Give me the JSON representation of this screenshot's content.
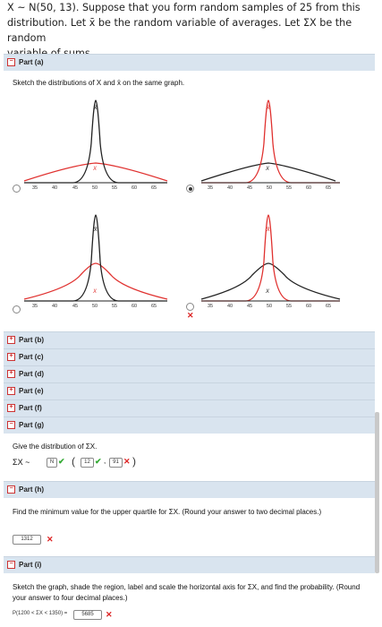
{
  "problem": {
    "line1_pre": "X ~ N(50, 13). Suppose that you form random samples of 25 from this",
    "line2": "distribution. Let x̄ be the random variable of averages. Let ΣX be the random",
    "line3": "variable of sums."
  },
  "parts": {
    "a": "Part (a)",
    "b": "Part (b)",
    "c": "Part (c)",
    "d": "Part (d)",
    "e": "Part (e)",
    "f": "Part (f)",
    "g": "Part (g)",
    "h": "Part (h)",
    "i": "Part (i)"
  },
  "part_a": {
    "instruction": "Sketch the distributions of X and x̄ on the same graph.",
    "x_ticks": [
      "35",
      "40",
      "45",
      "50",
      "55",
      "60",
      "65"
    ],
    "curve_label_mean": "x̄",
    "curve_label_x": "X"
  },
  "part_g": {
    "instruction": "Give the distribution of ΣX.",
    "prefix": "ΣX ~",
    "dist_value": "N",
    "param1": "12",
    "param2": "91",
    "paren_open": "(",
    "paren_close": ")",
    "comma": ","
  },
  "part_h": {
    "instruction": "Find the minimum value for the upper quartile for ΣX. (Round your answer to two decimal places.)",
    "answer": "1312"
  },
  "part_i": {
    "instruction": "Sketch the graph, shade the region, label and scale the horizontal axis for ΣX, and find the probability. (Round your answer to four decimal places.)",
    "expression": "P(1200 < ΣX < 1350) =",
    "answer": "5685"
  },
  "colors": {
    "red": "#e0312f",
    "black": "#222222",
    "header": "#d9e4ef"
  }
}
